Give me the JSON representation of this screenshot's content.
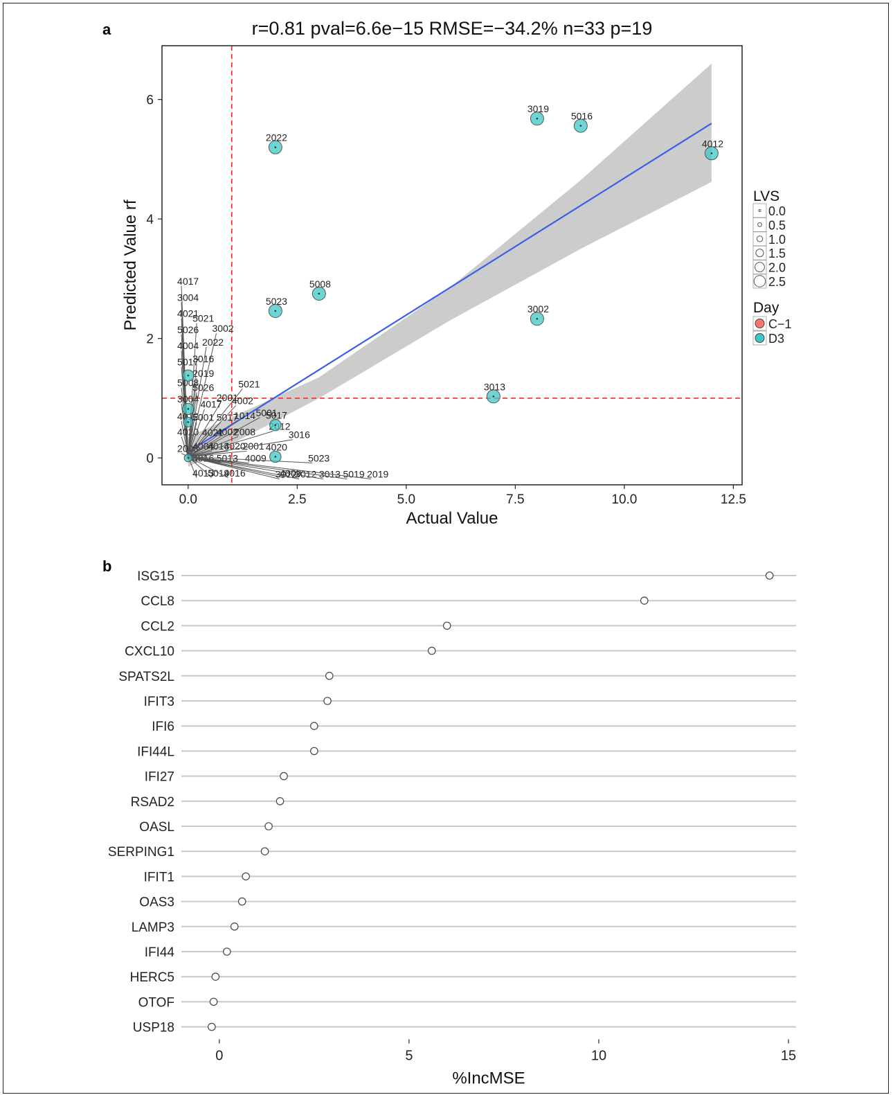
{
  "panel_a_label": "a",
  "panel_b_label": "b",
  "chart_data": [
    {
      "type": "scatter",
      "title": "r=0.81 pval=6.6e−15 RMSE=−34.2% n=33 p=19",
      "xlabel": "Actual Value",
      "ylabel": "Predicted Value rf",
      "xlim": [
        -0.6,
        12.7
      ],
      "ylim": [
        -0.45,
        6.9
      ],
      "xticks": [
        0.0,
        2.5,
        5.0,
        7.5,
        10.0,
        12.5
      ],
      "xtick_labels": [
        "0.0",
        "2.5",
        "5.0",
        "7.5",
        "10.0",
        "12.5"
      ],
      "yticks": [
        0,
        2,
        4,
        6
      ],
      "ytick_labels": [
        "0",
        "2",
        "4",
        "6"
      ],
      "reference_lines": {
        "vertical_x": 1,
        "horizontal_y": 1,
        "color": "#e8302e",
        "style": "dashed"
      },
      "fit_line": {
        "x": [
          0,
          12
        ],
        "y": [
          0.1,
          5.6
        ],
        "color": "#3a5fe8"
      },
      "confidence_band": {
        "x": [
          0,
          3,
          6,
          9,
          12
        ],
        "lower": [
          -0.15,
          1.0,
          2.3,
          3.5,
          4.62
        ],
        "upper": [
          0.35,
          1.35,
          2.85,
          4.65,
          6.6
        ],
        "color": "#cccccc"
      },
      "point_color": "#3fc5c5",
      "points": [
        {
          "label": "3019",
          "x": 8.0,
          "y": 5.68,
          "lvs": 2.5
        },
        {
          "label": "5016",
          "x": 9.0,
          "y": 5.56,
          "lvs": 2.5
        },
        {
          "label": "4012",
          "x": 12.0,
          "y": 5.1,
          "lvs": 2.5
        },
        {
          "label": "2022",
          "x": 2.0,
          "y": 5.2,
          "lvs": 2.5
        },
        {
          "label": "5008",
          "x": 3.0,
          "y": 2.75,
          "lvs": 2.5
        },
        {
          "label": "5023",
          "x": 2.0,
          "y": 2.46,
          "lvs": 2.5
        },
        {
          "label": "3002",
          "x": 8.0,
          "y": 2.33,
          "lvs": 2.5
        },
        {
          "label": "3013",
          "x": 7.0,
          "y": 1.03,
          "lvs": 2.5
        },
        {
          "label": "5021",
          "x": 0.0,
          "y": 1.38,
          "lvs": 2.0
        },
        {
          "label": "3004",
          "x": 0.0,
          "y": 0.82,
          "lvs": 2.0
        },
        {
          "label": "5017",
          "x": 2.0,
          "y": 0.55,
          "lvs": 2.0
        },
        {
          "label": "4020",
          "x": 2.0,
          "y": 0.02,
          "lvs": 2.0
        },
        {
          "label": "4012",
          "x": 0.0,
          "y": 0.6,
          "lvs": 1.5
        },
        {
          "label": "2008",
          "x": 0.0,
          "y": 0.0,
          "lvs": 1.0
        }
      ],
      "leader_labels": [
        {
          "text": "4017",
          "tx": -0.25,
          "ty": 2.9,
          "px": 0.0,
          "py": 0.02
        },
        {
          "text": "3004",
          "tx": -0.25,
          "ty": 2.63,
          "px": 0.0,
          "py": 0.02
        },
        {
          "text": "4021",
          "tx": -0.25,
          "ty": 2.36,
          "px": 0.0,
          "py": 0.02
        },
        {
          "text": "5026",
          "tx": -0.25,
          "ty": 2.09,
          "px": 0.0,
          "py": 0.02
        },
        {
          "text": "4004",
          "tx": -0.25,
          "ty": 1.82,
          "px": 0.0,
          "py": 0.02
        },
        {
          "text": "5017",
          "tx": -0.25,
          "ty": 1.55,
          "px": 0.0,
          "py": 0.02
        },
        {
          "text": "5008",
          "tx": -0.25,
          "ty": 1.2,
          "px": 0.0,
          "py": 0.02
        },
        {
          "text": "3004",
          "tx": -0.25,
          "ty": 0.93,
          "px": 0.0,
          "py": 0.02
        },
        {
          "text": "4012",
          "tx": -0.25,
          "ty": 0.64,
          "px": 0.0,
          "py": 0.02
        },
        {
          "text": "4020",
          "tx": -0.25,
          "ty": 0.38,
          "px": 0.0,
          "py": 0.02
        },
        {
          "text": "2003",
          "tx": -0.25,
          "ty": 0.1,
          "px": 0.0,
          "py": 0.02
        },
        {
          "text": "5021",
          "tx": 0.1,
          "ty": 2.28,
          "px": 0.0,
          "py": 0.02
        },
        {
          "text": "3002",
          "tx": 0.55,
          "ty": 2.11,
          "px": 0.0,
          "py": 0.02
        },
        {
          "text": "2022",
          "tx": 0.32,
          "ty": 1.88,
          "px": 0.0,
          "py": 0.02
        },
        {
          "text": "3016",
          "tx": 0.1,
          "ty": 1.6,
          "px": 0.0,
          "py": 0.02
        },
        {
          "text": "2019",
          "tx": 0.1,
          "ty": 1.36,
          "px": 0.0,
          "py": 0.02
        },
        {
          "text": "5026",
          "tx": 0.1,
          "ty": 1.12,
          "px": 0.0,
          "py": 0.02
        },
        {
          "text": "2001",
          "tx": 0.65,
          "ty": 0.95,
          "px": 0.0,
          "py": 0.02
        },
        {
          "text": "4017",
          "tx": 0.28,
          "ty": 0.84,
          "px": 0.0,
          "py": 0.02
        },
        {
          "text": "5001",
          "tx": 0.1,
          "ty": 0.62,
          "px": 0.0,
          "py": 0.02
        },
        {
          "text": "4021",
          "tx": 0.32,
          "ty": 0.37,
          "px": 0.0,
          "py": 0.02
        },
        {
          "text": "4004",
          "tx": 0.1,
          "ty": 0.14,
          "px": 0.0,
          "py": 0.02
        },
        {
          "text": "4013",
          "tx": 0.45,
          "ty": 0.14,
          "px": 0.0,
          "py": 0.02
        },
        {
          "text": "4016",
          "tx": 0.1,
          "ty": -0.06,
          "px": 0.0,
          "py": 0.02
        },
        {
          "text": "4013",
          "tx": 0.1,
          "ty": -0.31,
          "px": 0.0,
          "py": 0.02
        },
        {
          "text": "5019",
          "tx": 0.45,
          "ty": -0.31,
          "px": 0.0,
          "py": 0.02
        },
        {
          "text": "4016",
          "tx": 0.82,
          "ty": -0.31,
          "px": 0.0,
          "py": 0.02
        },
        {
          "text": "5013",
          "tx": 0.65,
          "ty": -0.06,
          "px": 0.0,
          "py": 0.02
        },
        {
          "text": "4009",
          "tx": 1.3,
          "ty": -0.06,
          "px": 0.0,
          "py": 0.02
        },
        {
          "text": "4009",
          "tx": 2.1,
          "ty": -0.31,
          "px": 0.0,
          "py": 0.02
        },
        {
          "text": "5023",
          "tx": 2.75,
          "ty": -0.06,
          "px": 0.0,
          "py": 0.02
        },
        {
          "text": "5021",
          "tx": 1.15,
          "ty": 1.18,
          "px": 0.0,
          "py": 0.02
        },
        {
          "text": "4002",
          "tx": 1.0,
          "ty": 0.9,
          "px": 0.0,
          "py": 0.02
        },
        {
          "text": "5017",
          "tx": 0.65,
          "ty": 0.62,
          "px": 0.0,
          "py": 0.02
        },
        {
          "text": "1014",
          "tx": 1.05,
          "ty": 0.65,
          "px": 0.0,
          "py": 0.02
        },
        {
          "text": "5001",
          "tx": 1.55,
          "ty": 0.7,
          "px": 0.0,
          "py": 0.02
        },
        {
          "text": "4002",
          "tx": 0.65,
          "ty": 0.38,
          "px": 0.0,
          "py": 0.02
        },
        {
          "text": "2008",
          "tx": 1.05,
          "ty": 0.38,
          "px": 0.0,
          "py": 0.02
        },
        {
          "text": "4020",
          "tx": 0.82,
          "ty": 0.14,
          "px": 0.0,
          "py": 0.02
        },
        {
          "text": "2001",
          "tx": 1.25,
          "ty": 0.14,
          "px": 0.0,
          "py": 0.02
        },
        {
          "text": "2012",
          "tx": 1.85,
          "ty": 0.47,
          "px": 0.0,
          "py": 0.02
        },
        {
          "text": "3016",
          "tx": 2.3,
          "ty": 0.33,
          "px": 0.0,
          "py": 0.02
        },
        {
          "text": "3012",
          "tx": 2.0,
          "ty": -0.33,
          "px": 0.0,
          "py": 0.02
        },
        {
          "text": "3012",
          "tx": 2.45,
          "ty": -0.33,
          "px": 0.0,
          "py": 0.02
        },
        {
          "text": "3013",
          "tx": 3.0,
          "ty": -0.33,
          "px": 0.0,
          "py": 0.02
        },
        {
          "text": "5019",
          "tx": 3.55,
          "ty": -0.33,
          "px": 0.0,
          "py": 0.02
        },
        {
          "text": "2019",
          "tx": 4.1,
          "ty": -0.33,
          "px": 0.0,
          "py": 0.02
        }
      ],
      "legend": {
        "placement": "right",
        "size_title": "LVS",
        "size_levels": [
          "0.0",
          "0.5",
          "1.0",
          "1.5",
          "2.0",
          "2.5"
        ],
        "color_title": "Day",
        "color_entries": [
          {
            "name": "C−1",
            "color": "#f8766d"
          },
          {
            "name": "D3",
            "color": "#3fc5c5"
          }
        ]
      }
    },
    {
      "type": "dot",
      "xlabel": "%IncMSE",
      "xlim": [
        -1.0,
        15.2
      ],
      "xticks": [
        0,
        5,
        10,
        15
      ],
      "xtick_labels": [
        "0",
        "5",
        "10",
        "15"
      ],
      "categories": [
        "ISG15",
        "CCL8",
        "CCL2",
        "CXCL10",
        "SPATS2L",
        "IFIT3",
        "IFI6",
        "IFI44L",
        "IFI27",
        "RSAD2",
        "OASL",
        "SERPING1",
        "IFIT1",
        "OAS3",
        "LAMP3",
        "IFI44",
        "HERC5",
        "OTOF",
        "USP18"
      ],
      "values": [
        14.5,
        11.2,
        6.0,
        5.6,
        2.9,
        2.85,
        2.5,
        2.5,
        1.7,
        1.6,
        1.3,
        1.2,
        0.7,
        0.6,
        0.4,
        0.2,
        -0.1,
        -0.15,
        -0.2
      ]
    }
  ]
}
